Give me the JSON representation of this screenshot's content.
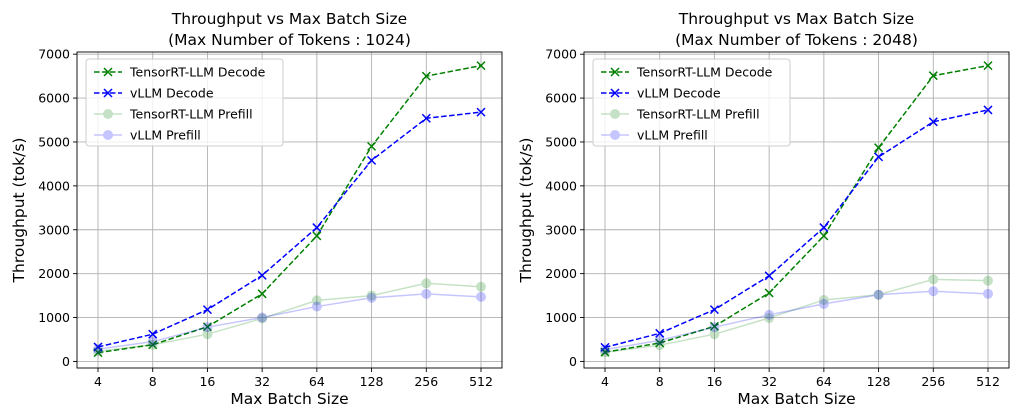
{
  "chart_data": [
    {
      "type": "line",
      "title": "Throughput vs Max Batch Size",
      "subtitle": "(Max Number of Tokens : 1024)",
      "xlabel": "Max Batch Size",
      "ylabel": "Throughput (tok/s)",
      "categories": [
        "4",
        "8",
        "16",
        "32",
        "64",
        "128",
        "256",
        "512"
      ],
      "ylim": [
        -150,
        7050
      ],
      "yticks": [
        0,
        1000,
        2000,
        3000,
        4000,
        5000,
        6000,
        7000
      ],
      "grid": true,
      "legend_position": "top-left",
      "series": [
        {
          "name": "TensorRT-LLM Decode",
          "values": [
            200,
            380,
            790,
            1540,
            2860,
            4900,
            6500,
            6740
          ],
          "color": "#008000",
          "dashed": true,
          "marker": "x",
          "opacity": 1
        },
        {
          "name": "vLLM Decode",
          "values": [
            330,
            620,
            1180,
            1960,
            3050,
            4580,
            5540,
            5680
          ],
          "color": "#0000ff",
          "dashed": true,
          "marker": "x",
          "opacity": 1
        },
        {
          "name": "TensorRT-LLM Prefill",
          "values": [
            230,
            380,
            620,
            980,
            1390,
            1500,
            1780,
            1700
          ],
          "color": "#008000",
          "dashed": false,
          "marker": "o",
          "opacity": 0.22
        },
        {
          "name": "vLLM Prefill",
          "values": [
            280,
            450,
            780,
            1000,
            1250,
            1450,
            1540,
            1470
          ],
          "color": "#0000ff",
          "dashed": false,
          "marker": "o",
          "opacity": 0.22
        }
      ]
    },
    {
      "type": "line",
      "title": "Throughput vs Max Batch Size",
      "subtitle": "(Max Number of Tokens : 2048)",
      "xlabel": "Max Batch Size",
      "ylabel": "Throughput (tok/s)",
      "categories": [
        "4",
        "8",
        "16",
        "32",
        "64",
        "128",
        "256",
        "512"
      ],
      "ylim": [
        -150,
        7050
      ],
      "yticks": [
        0,
        1000,
        2000,
        3000,
        4000,
        5000,
        6000,
        7000
      ],
      "grid": true,
      "legend_position": "top-left",
      "series": [
        {
          "name": "TensorRT-LLM Decode",
          "values": [
            210,
            420,
            800,
            1560,
            2860,
            4870,
            6510,
            6740
          ],
          "color": "#008000",
          "dashed": true,
          "marker": "x",
          "opacity": 1
        },
        {
          "name": "vLLM Decode",
          "values": [
            320,
            640,
            1180,
            1950,
            3050,
            4660,
            5460,
            5730
          ],
          "color": "#0000ff",
          "dashed": true,
          "marker": "x",
          "opacity": 1
        },
        {
          "name": "TensorRT-LLM Prefill",
          "values": [
            210,
            370,
            620,
            990,
            1400,
            1520,
            1870,
            1840
          ],
          "color": "#008000",
          "dashed": false,
          "marker": "o",
          "opacity": 0.22
        },
        {
          "name": "vLLM Prefill",
          "values": [
            270,
            480,
            780,
            1060,
            1310,
            1520,
            1600,
            1540
          ],
          "color": "#0000ff",
          "dashed": false,
          "marker": "o",
          "opacity": 0.22
        }
      ]
    }
  ]
}
